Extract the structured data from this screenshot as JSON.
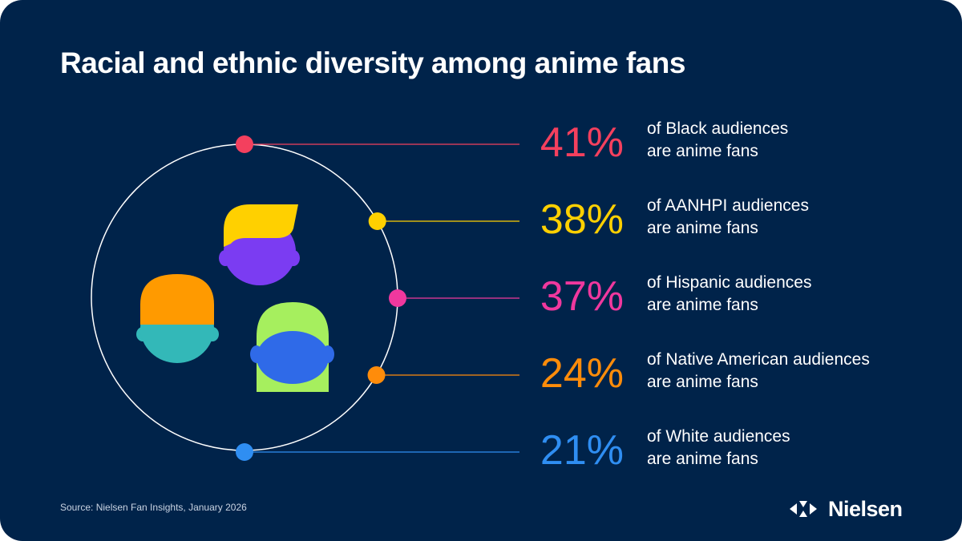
{
  "title": "Racial and ethnic diversity among anime fans",
  "source": "Source: Nielsen Fan Insights, January 2026",
  "brand": {
    "name": "Nielsen",
    "logo_icon": "nielsen-arrows-icon"
  },
  "chart_data": {
    "type": "infographic",
    "unit": "%",
    "items": [
      {
        "value": 41,
        "display": "41%",
        "line1": "of Black audiences",
        "line2": "are anime fans",
        "color": "#f4405e"
      },
      {
        "value": 38,
        "display": "38%",
        "line1": "of AANHPI audiences",
        "line2": "are anime fans",
        "color": "#ffd000"
      },
      {
        "value": 37,
        "display": "37%",
        "line1": "of Hispanic audiences",
        "line2": "are anime fans",
        "color": "#f0389e"
      },
      {
        "value": 24,
        "display": "24%",
        "line1": "of Native American audiences",
        "line2": "are anime fans",
        "color": "#ff8c0a"
      },
      {
        "value": 21,
        "display": "21%",
        "line1": "of White audiences",
        "line2": "are anime fans",
        "color": "#2f8ef2"
      }
    ]
  },
  "illustration": {
    "icons": [
      "person-blond-purple-icon",
      "person-orange-hat-teal-icon",
      "person-green-hair-blue-icon"
    ],
    "colors": {
      "ring": "#ffffff",
      "hair_yellow": "#ffd000",
      "face_purple": "#7b3cf2",
      "hat_orange": "#ff9a00",
      "face_teal": "#33b8b8",
      "hair_green": "#a6ef5e",
      "face_blue": "#2f6ae8"
    }
  }
}
